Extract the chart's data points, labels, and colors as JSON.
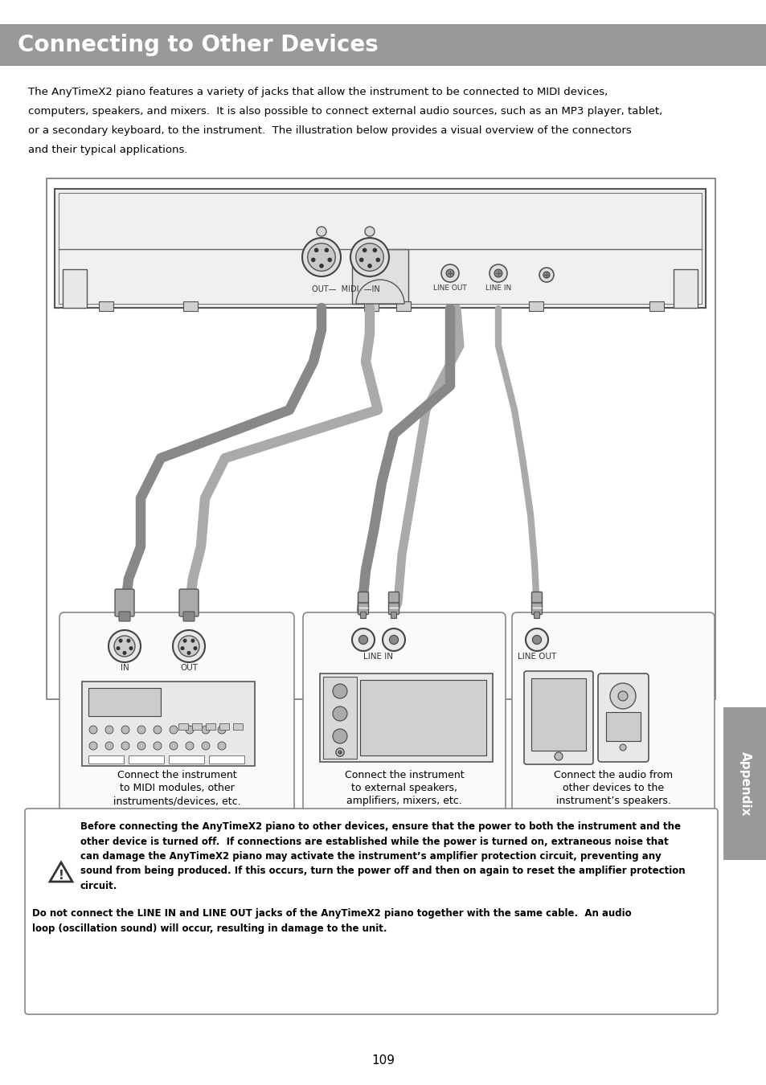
{
  "title": "Connecting to Other Devices",
  "title_bg": "#999999",
  "title_color": "#ffffff",
  "title_fontsize": 20,
  "page_bg": "#ffffff",
  "body_line1": "The AnyTimeX2 piano features a variety of jacks that allow the instrument to be connected to MIDI devices,",
  "body_line2": "computers, speakers, and mixers.  It is also possible to connect external audio sources, such as an MP3 player, tablet,",
  "body_line3": "or a secondary keyboard, to the instrument.  The illustration below provides a visual overview of the connectors",
  "body_line4": "and their typical applications.",
  "caption1_line1": "Connect the instrument",
  "caption1_line2": "to MIDI modules, other",
  "caption1_line3": "instruments/devices, etc.",
  "caption2_line1": "Connect the instrument",
  "caption2_line2": "to external speakers,",
  "caption2_line3": "amplifiers, mixers, etc.",
  "caption3_line1": "Connect the audio from",
  "caption3_line2": "other devices to the",
  "caption3_line3": "instrument’s speakers.",
  "warn1": "Before connecting the AnyTimeX2 piano to other devices, ensure that the power to both the instrument and the",
  "warn2": "other device is turned off.  If connections are established while the power is turned on, extraneous noise that",
  "warn3": "can damage the AnyTimeX2 piano may activate the instrument’s amplifier protection circuit, preventing any",
  "warn4": "sound from being produced. If this occurs, turn the power off and then on again to reset the amplifier protection",
  "warn5": "circuit.",
  "warn6": "Do not connect the LINE IN and LINE OUT jacks of the AnyTimeX2 piano together with the same cable.  An audio",
  "warn7": "loop (oscillation sound) will occur, resulting in damage to the unit.",
  "page_number": "109",
  "appendix_label": "Appendix",
  "appendix_bg": "#999999",
  "cable_color": "#aaaaaa",
  "cable_dark": "#888888",
  "panel_color": "#d8d8d8",
  "box_edge": "#888888",
  "diagram_bg": "#ffffff"
}
